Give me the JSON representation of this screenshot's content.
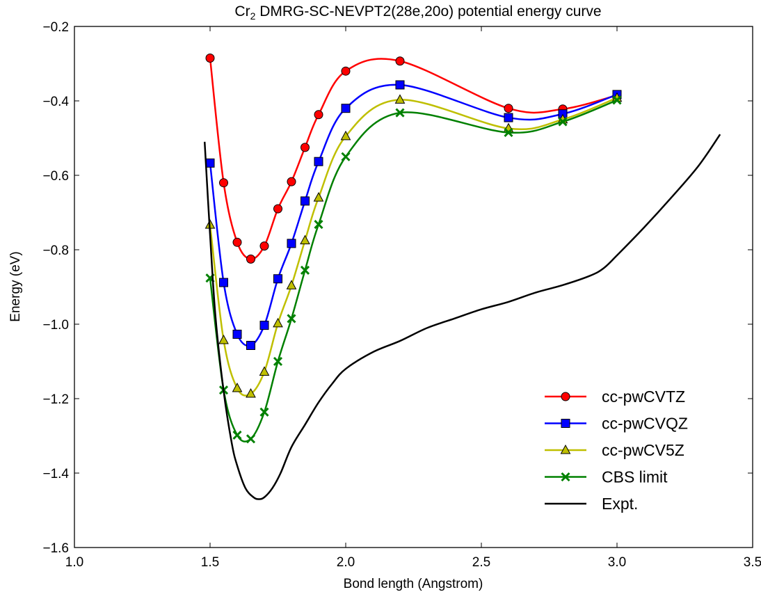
{
  "chart_data": {
    "type": "line",
    "title": {
      "prefix": "Cr",
      "subscript": "2",
      "suffix": " DMRG-SC-NEVPT2(28e,20o) potential energy curve"
    },
    "xlabel": "Bond length (Angstrom)",
    "ylabel": "Energy (eV)",
    "xlim": [
      1.0,
      3.5
    ],
    "ylim": [
      -1.6,
      -0.2
    ],
    "xticks": [
      1.0,
      1.5,
      2.0,
      2.5,
      3.0,
      3.5
    ],
    "xtick_labels": [
      "1.0",
      "1.5",
      "2.0",
      "2.5",
      "3.0",
      "3.5"
    ],
    "yticks": [
      -1.6,
      -1.4,
      -1.2,
      -1.0,
      -0.8,
      -0.6,
      -0.4,
      -0.2
    ],
    "ytick_labels": [
      "−1.6",
      "−1.4",
      "−1.2",
      "−1.0",
      "−0.8",
      "−0.6",
      "−0.4",
      "−0.2"
    ],
    "grid": false,
    "legend_position": "lower-right",
    "series": [
      {
        "name": "cc-pwCVTZ",
        "color": "#ff0000",
        "marker": "circle",
        "x": [
          1.5,
          1.55,
          1.6,
          1.65,
          1.7,
          1.75,
          1.8,
          1.85,
          1.9,
          2.0,
          2.2,
          2.6,
          2.8,
          3.0
        ],
        "y": [
          -0.285,
          -0.62,
          -0.78,
          -0.825,
          -0.79,
          -0.69,
          -0.617,
          -0.525,
          -0.437,
          -0.32,
          -0.293,
          -0.42,
          -0.422,
          -0.385
        ]
      },
      {
        "name": "cc-pwCVQZ",
        "color": "#0000ff",
        "marker": "square",
        "x": [
          1.5,
          1.55,
          1.6,
          1.65,
          1.7,
          1.75,
          1.8,
          1.85,
          1.9,
          2.0,
          2.2,
          2.6,
          2.8,
          3.0
        ],
        "y": [
          -0.567,
          -0.888,
          -1.027,
          -1.057,
          -1.003,
          -0.878,
          -0.783,
          -0.669,
          -0.563,
          -0.42,
          -0.357,
          -0.445,
          -0.435,
          -0.383
        ]
      },
      {
        "name": "cc-pwCV5Z",
        "color": "#bfbf00",
        "marker": "triangle",
        "x": [
          1.5,
          1.55,
          1.6,
          1.65,
          1.7,
          1.75,
          1.8,
          1.85,
          1.9,
          2.0,
          2.2,
          2.6,
          2.8,
          3.0
        ],
        "y": [
          -0.733,
          -1.043,
          -1.172,
          -1.187,
          -1.128,
          -0.998,
          -0.896,
          -0.775,
          -0.66,
          -0.495,
          -0.397,
          -0.474,
          -0.45,
          -0.392
        ]
      },
      {
        "name": "CBS limit",
        "color": "#008000",
        "marker": "x",
        "x": [
          1.5,
          1.55,
          1.6,
          1.65,
          1.7,
          1.75,
          1.8,
          1.85,
          1.9,
          2.0,
          2.2,
          2.6,
          2.8,
          3.0
        ],
        "y": [
          -0.876,
          -1.177,
          -1.298,
          -1.308,
          -1.236,
          -1.1,
          -0.985,
          -0.855,
          -0.732,
          -0.55,
          -0.432,
          -0.485,
          -0.456,
          -0.398
        ]
      },
      {
        "name": "Expt.",
        "color": "#000000",
        "marker": "none",
        "x": [
          1.48,
          1.5,
          1.52,
          1.55,
          1.58,
          1.6,
          1.63,
          1.66,
          1.68,
          1.7,
          1.73,
          1.76,
          1.8,
          1.85,
          1.9,
          1.95,
          2.0,
          2.1,
          2.2,
          2.3,
          2.4,
          2.5,
          2.6,
          2.7,
          2.8,
          2.9,
          2.95,
          3.0,
          3.1,
          3.2,
          3.3,
          3.38
        ],
        "y": [
          -0.51,
          -0.76,
          -0.98,
          -1.18,
          -1.32,
          -1.38,
          -1.44,
          -1.465,
          -1.47,
          -1.465,
          -1.44,
          -1.4,
          -1.33,
          -1.27,
          -1.21,
          -1.16,
          -1.12,
          -1.075,
          -1.045,
          -1.01,
          -0.985,
          -0.96,
          -0.94,
          -0.915,
          -0.895,
          -0.87,
          -0.85,
          -0.815,
          -0.74,
          -0.66,
          -0.575,
          -0.49
        ]
      }
    ]
  }
}
